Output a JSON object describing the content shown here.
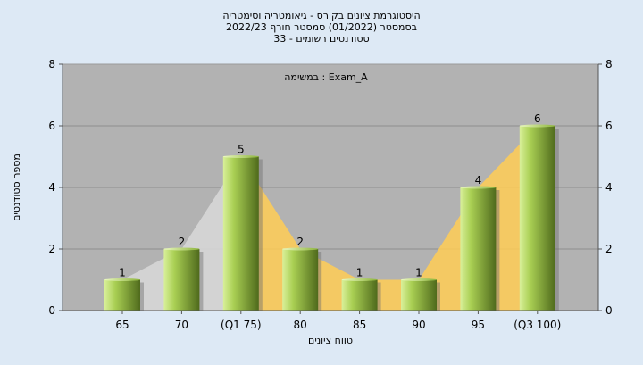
{
  "chart_data": {
    "type": "bar",
    "title_lines": [
      "היסטוגרמת ציונים בקורס - גיאומטריה וסימטריה",
      "בסמסטר  (01/2022)  סמסטר חורף 2022/23",
      "33 - סטודנטים רשומים"
    ],
    "annotation": "Exam_A : במשימה",
    "xlabel": "טווח ציונים",
    "ylabel": "מספר סטודנטים",
    "categories": [
      "65",
      "70",
      "(Q1 75)",
      "80",
      "85",
      "90",
      "95",
      "(Q3 100)"
    ],
    "values": [
      1,
      2,
      5,
      2,
      1,
      1,
      4,
      6
    ],
    "y_ticks": [
      0,
      2,
      4,
      6,
      8
    ],
    "ylim": [
      0,
      8
    ],
    "grid": "horizontal",
    "colors": {
      "background": "#dde9f5",
      "plot_background": "#b2b2b2",
      "bar_light": "#d9f09a",
      "bar_mid": "#a9cf53",
      "bar_dark": "#4f6a1c",
      "area_fill": "#ffcc55",
      "area_light": "#d6d6d6"
    }
  }
}
